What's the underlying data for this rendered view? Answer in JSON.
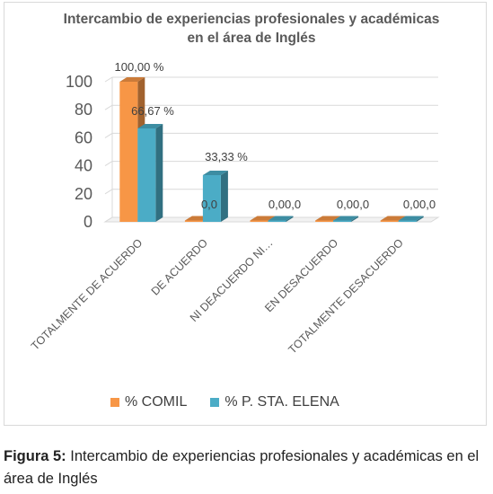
{
  "chart_data": {
    "type": "bar",
    "title": "Intercambio de experiencias profesionales y académicas en el área de Inglés",
    "categories": [
      "TOTALMENTE DE ACUERDO",
      "DE ACUERDO",
      "NI DEACUERDO NI…",
      "EN DESACUERDO",
      "TOTALMENTE DESACUERDO"
    ],
    "series": [
      {
        "name": "% COMIL",
        "values": [
          100.0,
          0,
          0,
          0,
          0
        ],
        "color": "#f79646",
        "labels": [
          "100,00 %",
          "0,0",
          "0,00,0",
          "0,00,0",
          "0,00,0"
        ]
      },
      {
        "name": "% P. STA. ELENA",
        "values": [
          66.67,
          33.33,
          0,
          0,
          0
        ],
        "color": "#4bacc6",
        "labels": [
          "66,67 %",
          "33,33 %",
          "",
          "",
          ""
        ]
      }
    ],
    "ylim": [
      0,
      100
    ],
    "yticks": [
      0,
      20,
      40,
      60,
      80,
      100
    ],
    "grid": true,
    "legend": "bottom",
    "xlabel": "",
    "ylabel": ""
  },
  "caption": {
    "label": "Figura 5:",
    "text": " Intercambio de experiencias profesionales y académicas en el área de Inglés"
  }
}
